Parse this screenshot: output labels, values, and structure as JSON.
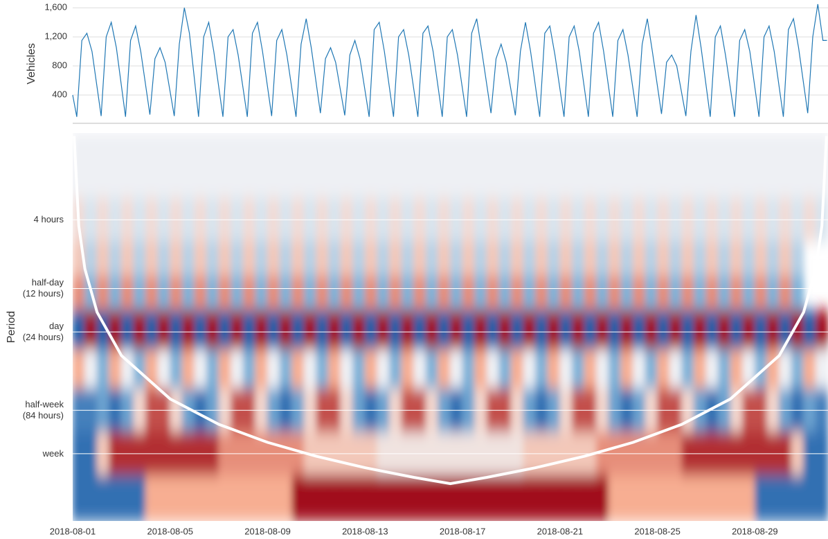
{
  "chart_data": [
    {
      "type": "line",
      "y_label": "Vehicles",
      "color": "#1f77b4",
      "grid": true,
      "xlim": [
        0,
        31
      ],
      "ylim": [
        10,
        1650
      ],
      "yticks": [
        400,
        800,
        {
          "value": 1200,
          "label": "1,200"
        },
        {
          "value": 1600,
          "label": "1,600"
        }
      ],
      "x": [
        0,
        0.167,
        0.375,
        0.583,
        0.792,
        1.167,
        1.375,
        1.583,
        1.792,
        2.167,
        2.375,
        2.583,
        2.792,
        3.167,
        3.375,
        3.583,
        3.792,
        4.167,
        4.375,
        4.583,
        4.792,
        5.167,
        5.375,
        5.583,
        5.792,
        6.167,
        6.375,
        6.583,
        6.792,
        7.167,
        7.375,
        7.583,
        7.792,
        8.167,
        8.375,
        8.583,
        8.792,
        9.167,
        9.375,
        9.583,
        9.792,
        10.167,
        10.375,
        10.583,
        10.792,
        11.167,
        11.375,
        11.583,
        11.792,
        12.167,
        12.375,
        12.583,
        12.792,
        13.167,
        13.375,
        13.583,
        13.792,
        14.167,
        14.375,
        14.583,
        14.792,
        15.167,
        15.375,
        15.583,
        15.792,
        16.167,
        16.375,
        16.583,
        16.792,
        17.167,
        17.375,
        17.583,
        17.792,
        18.167,
        18.375,
        18.583,
        18.792,
        19.167,
        19.375,
        19.583,
        19.792,
        20.167,
        20.375,
        20.583,
        20.792,
        21.167,
        21.375,
        21.583,
        21.792,
        22.167,
        22.375,
        22.583,
        22.792,
        23.167,
        23.375,
        23.583,
        23.792,
        24.167,
        24.375,
        24.583,
        24.792,
        25.167,
        25.375,
        25.583,
        25.792,
        26.167,
        26.375,
        26.583,
        26.792,
        27.167,
        27.375,
        27.583,
        27.792,
        28.167,
        28.375,
        28.583,
        28.792,
        29.167,
        29.375,
        29.583,
        29.792,
        30.167,
        30.375,
        30.583,
        30.792,
        30.958
      ],
      "values": [
        400,
        100,
        1150,
        1250,
        1000,
        110,
        1200,
        1400,
        1050,
        100,
        1150,
        1350,
        1000,
        130,
        900,
        1050,
        850,
        110,
        1100,
        1600,
        1250,
        100,
        1200,
        1400,
        1000,
        100,
        1200,
        1300,
        950,
        100,
        1250,
        1400,
        1000,
        110,
        1150,
        1300,
        950,
        100,
        1100,
        1450,
        1050,
        150,
        900,
        1050,
        850,
        120,
        950,
        1150,
        900,
        100,
        1300,
        1400,
        1000,
        100,
        1200,
        1300,
        950,
        100,
        1250,
        1350,
        1000,
        100,
        1200,
        1300,
        950,
        100,
        1250,
        1450,
        1000,
        150,
        900,
        1100,
        850,
        120,
        1000,
        1400,
        1000,
        100,
        1250,
        1350,
        950,
        100,
        1200,
        1350,
        1000,
        100,
        1250,
        1400,
        1000,
        100,
        1150,
        1300,
        950,
        100,
        1100,
        1450,
        1000,
        140,
        850,
        950,
        800,
        110,
        1000,
        1500,
        1050,
        100,
        1200,
        1350,
        950,
        100,
        1150,
        1300,
        1000,
        100,
        1200,
        1350,
        1000,
        100,
        1300,
        1450,
        1050,
        150,
        1200,
        1650,
        1150,
        1150
      ]
    },
    {
      "type": "heatmap",
      "y_label": "Period",
      "log_y": true,
      "xlim": [
        0,
        31
      ],
      "ylim": [
        1,
        492
      ],
      "xticks": [
        {
          "value": 0,
          "label": "2018-08-01"
        },
        {
          "value": 4,
          "label": "2018-08-05"
        },
        {
          "value": 8,
          "label": "2018-08-09"
        },
        {
          "value": 12,
          "label": "2018-08-13"
        },
        {
          "value": 16,
          "label": "2018-08-17"
        },
        {
          "value": 20,
          "label": "2018-08-21"
        },
        {
          "value": 24,
          "label": "2018-08-25"
        },
        {
          "value": 28,
          "label": "2018-08-29"
        }
      ],
      "yticks": [
        {
          "value": 4,
          "label": "4 hours"
        },
        {
          "value": 12,
          "label": "half-day\n(12 hours)"
        },
        {
          "value": 24,
          "label": "day\n(24 hours)"
        },
        {
          "value": 84,
          "label": "half-week\n(84 hours)"
        },
        {
          "value": 168,
          "label": "week"
        }
      ],
      "zlim": [
        -1,
        1
      ],
      "colormap": [
        "#1c5fa9",
        "#7fb2d8",
        "#eef0f4",
        "#f7ae92",
        "#a10f1b"
      ],
      "periods": [
        2,
        4,
        8,
        12,
        24,
        42,
        84,
        168,
        336
      ],
      "z": [
        [
          0,
          0,
          0,
          0,
          0,
          0,
          0,
          0,
          0,
          0,
          0,
          0,
          0,
          0,
          0,
          0,
          0,
          0,
          0,
          0,
          0,
          0,
          0,
          0,
          0,
          0,
          0,
          0,
          0,
          0,
          0,
          0,
          0,
          0,
          0,
          0,
          0,
          0,
          0,
          0,
          0,
          0,
          0,
          0,
          0,
          0,
          0,
          0,
          0,
          0,
          0,
          0,
          0,
          0,
          0,
          0,
          0,
          0,
          0,
          0,
          0,
          0
        ],
        [
          0.15,
          -0.1,
          0.15,
          -0.1,
          0.15,
          -0.1,
          0.15,
          -0.1,
          0.15,
          -0.1,
          0.15,
          -0.1,
          0.15,
          -0.1,
          0.15,
          -0.1,
          0.15,
          -0.1,
          0.15,
          -0.1,
          0.15,
          -0.1,
          0.15,
          -0.1,
          0.15,
          -0.1,
          0.15,
          -0.1,
          0.15,
          -0.1,
          0.15,
          -0.1,
          0.15,
          -0.1,
          0.15,
          -0.1,
          0.15,
          -0.1,
          0.15,
          -0.1,
          0.15,
          -0.1,
          0.15,
          -0.1,
          0.15,
          -0.1,
          0.15,
          -0.1,
          0.15,
          -0.1,
          0.15,
          -0.1,
          0.15,
          -0.1,
          0.15,
          -0.1,
          0.15,
          -0.1,
          0.15,
          -0.1,
          0.15,
          -0.1
        ],
        [
          0.3,
          -0.25,
          0.3,
          -0.25,
          0.3,
          -0.25,
          0.3,
          -0.25,
          0.3,
          -0.25,
          0.3,
          -0.25,
          0.3,
          -0.25,
          0.3,
          -0.25,
          0.3,
          -0.25,
          0.3,
          -0.25,
          0.3,
          -0.25,
          0.3,
          -0.25,
          0.3,
          -0.25,
          0.3,
          -0.25,
          0.3,
          -0.25,
          0.3,
          -0.25,
          0.3,
          -0.25,
          0.3,
          -0.25,
          0.3,
          -0.25,
          0.3,
          -0.25,
          0.3,
          -0.25,
          0.3,
          -0.25,
          0.3,
          -0.25,
          0.3,
          -0.25,
          0.3,
          -0.25,
          0.3,
          -0.25,
          0.3,
          -0.25,
          0.3,
          -0.25,
          0.3,
          -0.25,
          0.3,
          -0.25
        ],
        [
          0.6,
          -0.5,
          0.6,
          -0.5,
          0.6,
          -0.5,
          0.6,
          -0.5,
          0.6,
          -0.5,
          0.6,
          -0.5,
          0.6,
          -0.5,
          0.6,
          -0.5,
          0.6,
          -0.5,
          0.6,
          -0.5,
          0.6,
          -0.5,
          0.6,
          -0.5,
          0.6,
          -0.5,
          0.6,
          -0.5,
          0.6,
          -0.5,
          0.6,
          -0.5,
          0.6,
          -0.5,
          0.6,
          -0.5,
          0.6,
          -0.5,
          0.6,
          -0.5,
          0.6,
          -0.5,
          0.6,
          -0.5,
          0.6,
          -0.5,
          0.6,
          -0.5,
          0.6,
          -0.5,
          0.6,
          -0.5,
          0.6,
          -0.5,
          0.6,
          -0.5,
          0.6,
          -0.5,
          0.6,
          -0.5
        ],
        [
          -1,
          1,
          -1,
          1,
          -1,
          1,
          -1,
          1,
          -1,
          1,
          -1,
          1,
          -1,
          1,
          -1,
          1,
          -1,
          1,
          -1,
          1,
          -1,
          1,
          -1,
          1,
          -1,
          1,
          -1,
          1,
          -1,
          1,
          -1,
          1,
          -1,
          1,
          -1,
          1,
          -1,
          1,
          -1,
          1,
          -1,
          1,
          -1,
          1,
          -1,
          1,
          -1,
          1,
          -1,
          1,
          -1,
          1,
          -1,
          1,
          -1,
          1,
          -1,
          1,
          -1,
          1,
          -1,
          1
        ],
        [
          0.5,
          0,
          -0.5,
          0.5,
          0,
          -0.5,
          0.5,
          0,
          -0.5,
          0.5,
          0,
          -0.5,
          0.5,
          0,
          -0.5,
          0.5,
          0,
          -0.5,
          0.5,
          0,
          -0.5,
          0.5,
          0,
          -0.5,
          0.5,
          0,
          -0.5,
          0.5,
          0,
          -0.5,
          0.5,
          0,
          -0.5,
          0.5,
          0,
          -0.5,
          0.5,
          0,
          -0.5,
          0.5,
          0,
          -0.5,
          0.5,
          0,
          -0.5,
          0.5,
          0,
          -0.5,
          0.5,
          0,
          -0.5,
          0.5,
          0,
          -0.5,
          0.5,
          0,
          -0.5,
          0.5,
          0,
          -0.5,
          0.5,
          0
        ],
        [
          -0.8,
          -0.8,
          -0.6,
          -0.9,
          -0.6,
          0.2,
          0.8,
          0.8,
          0.2,
          -0.6,
          -0.9,
          -0.6,
          0.2,
          0.8,
          0.8,
          0.2,
          -0.6,
          -0.9,
          -0.6,
          0.2,
          0.8,
          0.8,
          0.2,
          -0.6,
          -0.9,
          -0.6,
          0.2,
          0.8,
          0.8,
          0.2,
          -0.6,
          -0.9,
          -0.6,
          0.2,
          0.8,
          0.8,
          0.2,
          -0.6,
          -0.9,
          -0.6,
          0.2,
          0.8,
          0.8,
          0.2,
          -0.6,
          -0.9,
          -0.6,
          0.2,
          0.8,
          0.8,
          0.2,
          -0.6,
          -0.9,
          -0.6,
          0.2,
          0.8,
          0.8,
          0.2,
          -0.6,
          -0.9,
          -0.6,
          -0.8
        ],
        [
          -0.9,
          -0.9,
          0.3,
          0.9,
          0.9,
          0.9,
          0.9,
          0.9,
          0.9,
          0.9,
          0.9,
          0.9,
          0.6,
          0.6,
          0.6,
          0.6,
          0.6,
          0.6,
          0.6,
          0.3,
          0.3,
          0.3,
          0.3,
          0.3,
          0.3,
          0.1,
          0.1,
          0.1,
          0.1,
          0.1,
          0.1,
          0.1,
          0.1,
          0.1,
          0.1,
          0.1,
          0.1,
          0.3,
          0.3,
          0.3,
          0.3,
          0.3,
          0.3,
          0.6,
          0.6,
          0.6,
          0.6,
          0.6,
          0.6,
          0.6,
          0.9,
          0.9,
          0.9,
          0.9,
          0.9,
          0.9,
          0.9,
          0.9,
          0.9,
          0.3,
          -0.9,
          -0.9
        ],
        [
          -0.9,
          -0.9,
          -0.9,
          -0.9,
          -0.9,
          -0.9,
          0.5,
          0.5,
          0.5,
          0.5,
          0.5,
          0.5,
          0.5,
          0.5,
          0.5,
          0.5,
          0.5,
          0.5,
          1,
          1,
          1,
          1,
          1,
          1,
          1,
          1,
          1,
          1,
          1,
          1,
          1,
          1,
          1,
          1,
          1,
          1,
          1,
          1,
          1,
          1,
          1,
          1,
          1,
          1,
          0.5,
          0.5,
          0.5,
          0.5,
          0.5,
          0.5,
          0.5,
          0.5,
          0.5,
          0.5,
          0.5,
          0.5,
          -0.9,
          -0.9,
          -0.9,
          -0.9,
          -0.9,
          -0.9
        ]
      ],
      "cone": {
        "color": "#ffffff",
        "x": [
          0.06,
          0.25,
          0.5,
          1,
          2,
          4,
          6,
          8,
          10,
          12,
          14,
          15.5,
          17,
          19,
          21,
          23,
          25,
          27,
          29,
          30,
          30.5,
          30.75,
          30.94
        ],
        "values": [
          1.05,
          4.4,
          8.75,
          17.5,
          35,
          70,
          105,
          140,
          175,
          210,
          245,
          271,
          245,
          210,
          175,
          140,
          105,
          70,
          35,
          17.5,
          8.75,
          4.4,
          1.05
        ]
      }
    }
  ]
}
